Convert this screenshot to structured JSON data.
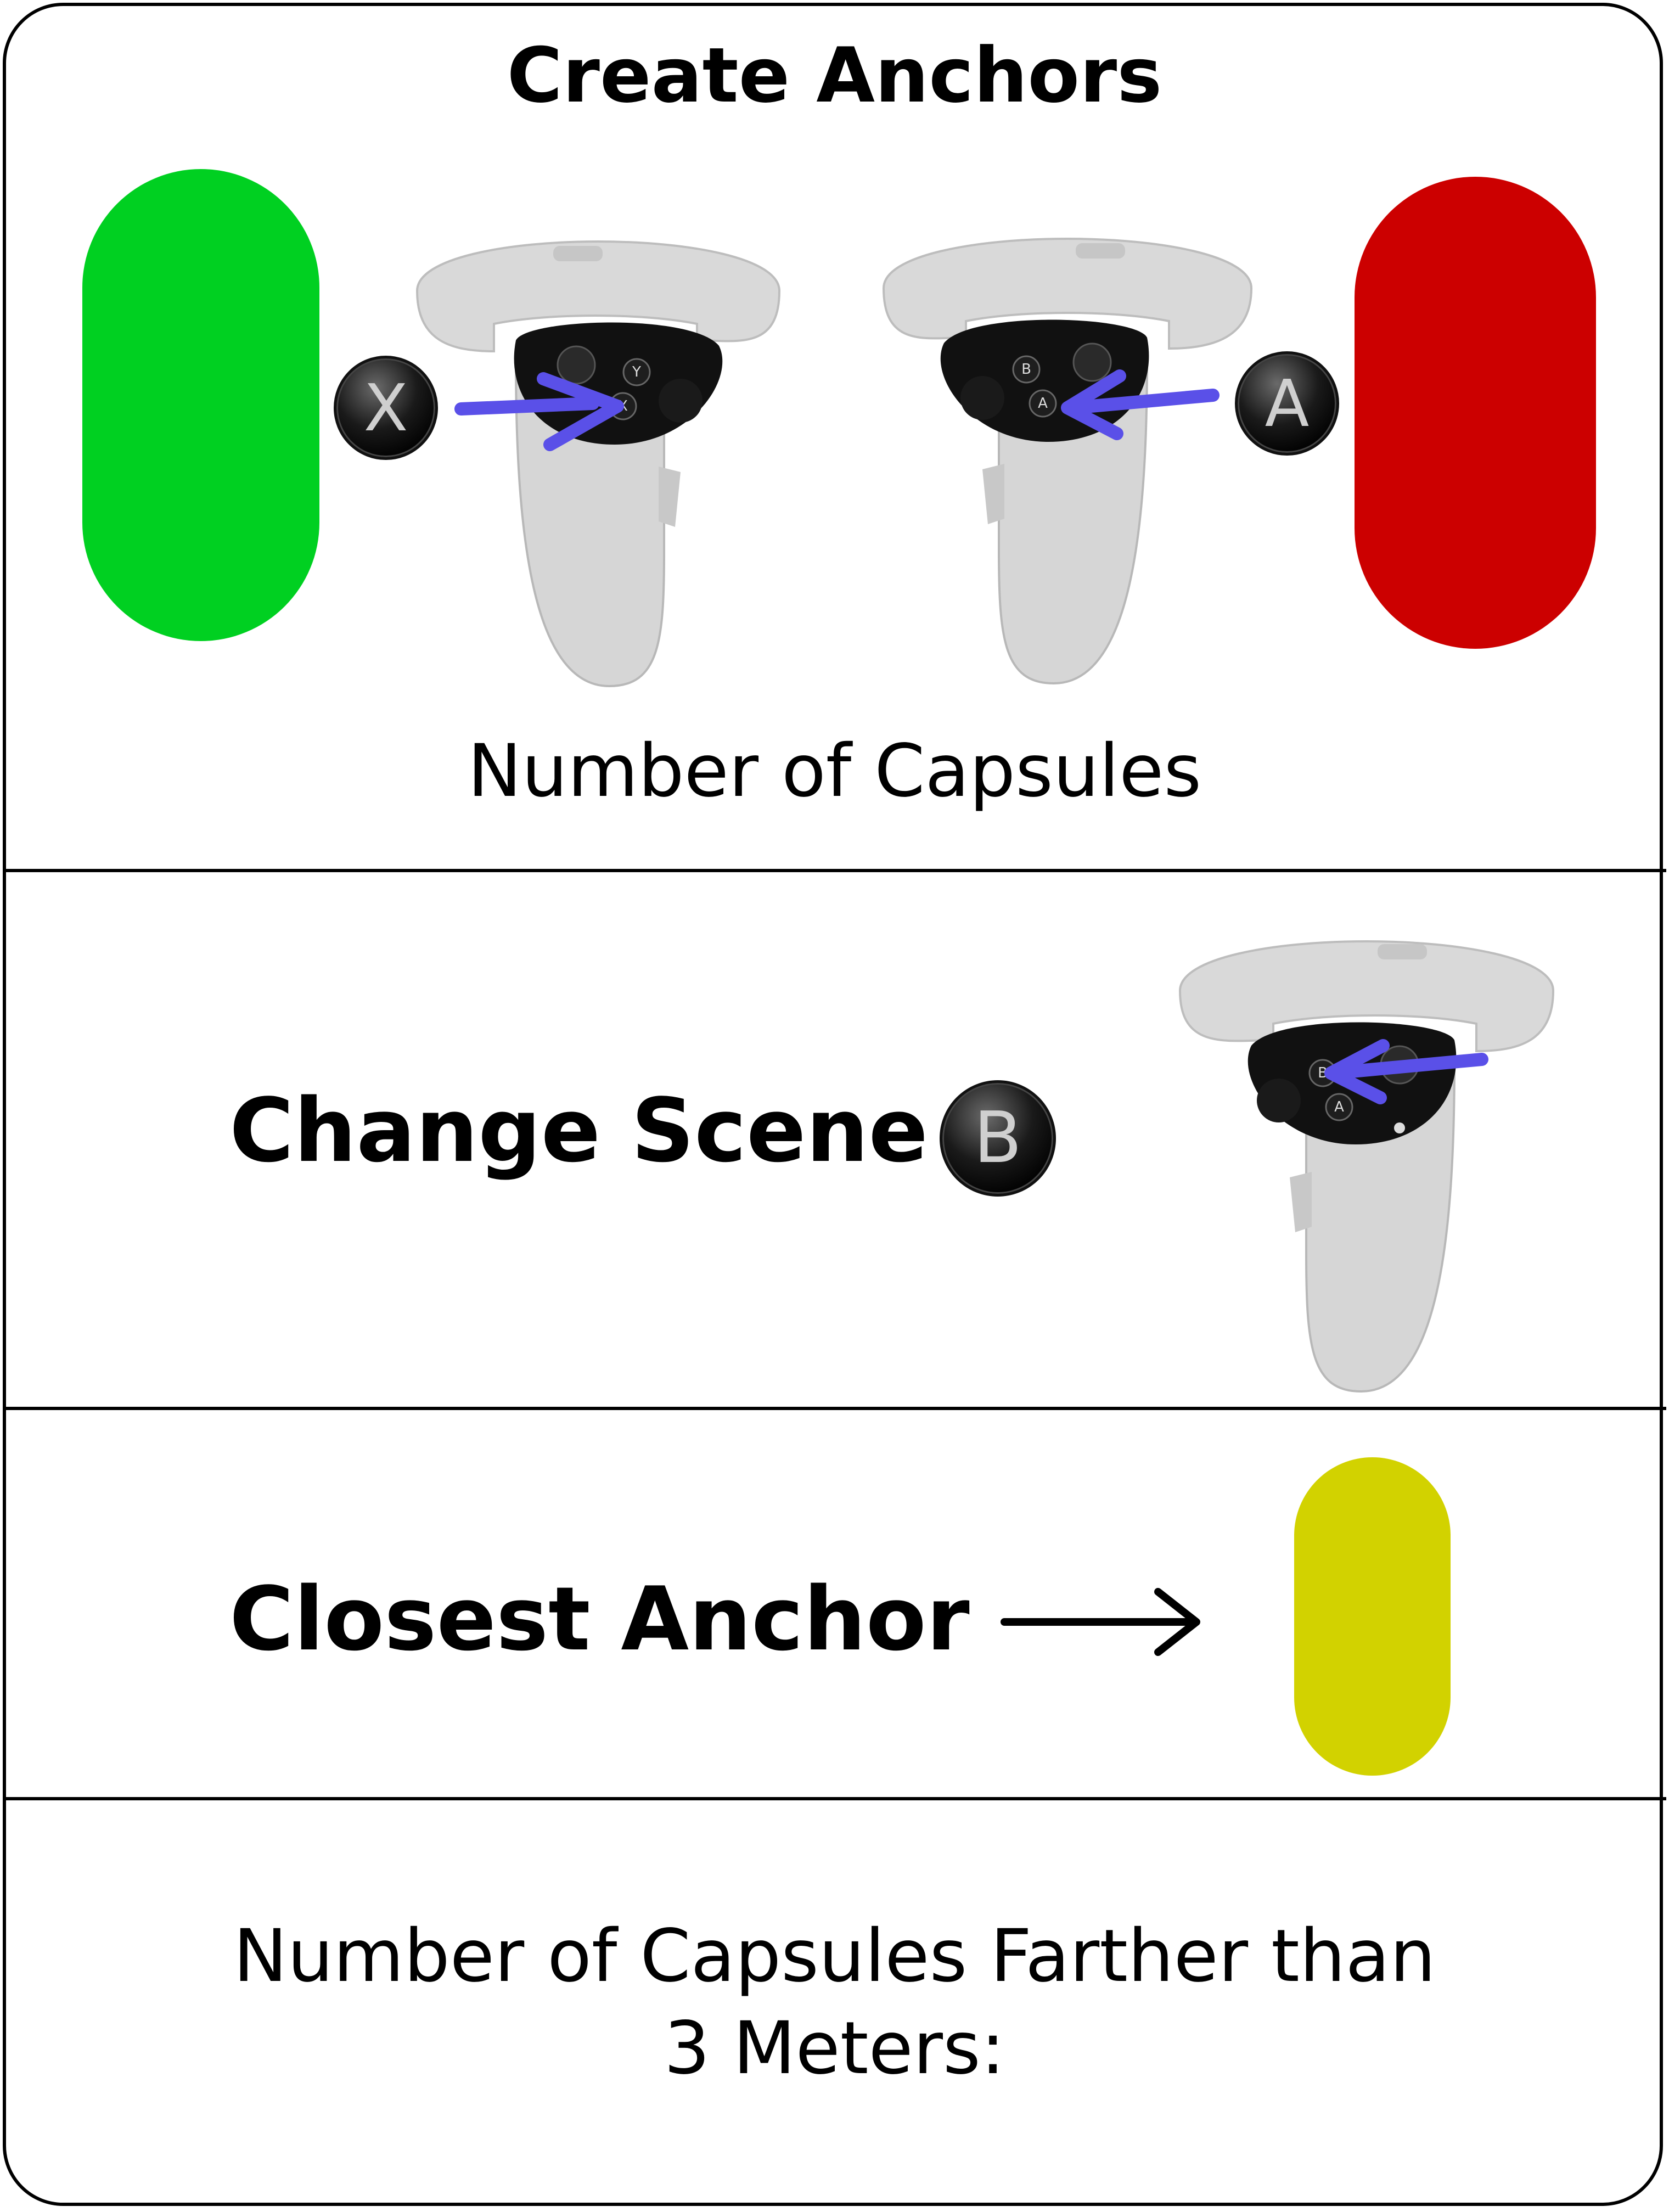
{
  "create_anchors": {
    "title": "Create Anchors",
    "subtitle": "Number of Capsules",
    "left_badge": "X",
    "right_badge": "A",
    "left_capsule_color": "#00d021",
    "right_capsule_color": "#cc0000",
    "left_controller_buttons": [
      "Y",
      "X"
    ],
    "right_controller_buttons": [
      "B",
      "A"
    ]
  },
  "change_scene": {
    "title": "Change Scene",
    "badge": "B",
    "controller_buttons": [
      "B",
      "A"
    ]
  },
  "closest_anchor": {
    "title": "Closest Anchor",
    "capsule_color": "#d2d200",
    "arrow_icon": "long-arrow-right-icon"
  },
  "farther_count": {
    "line1": "Number of Capsules Farther than",
    "line2": "3 Meters:"
  },
  "colors": {
    "pointer_arrow": "#5a50e8",
    "controller_body": "#d9d9d9",
    "controller_face": "#111111"
  }
}
